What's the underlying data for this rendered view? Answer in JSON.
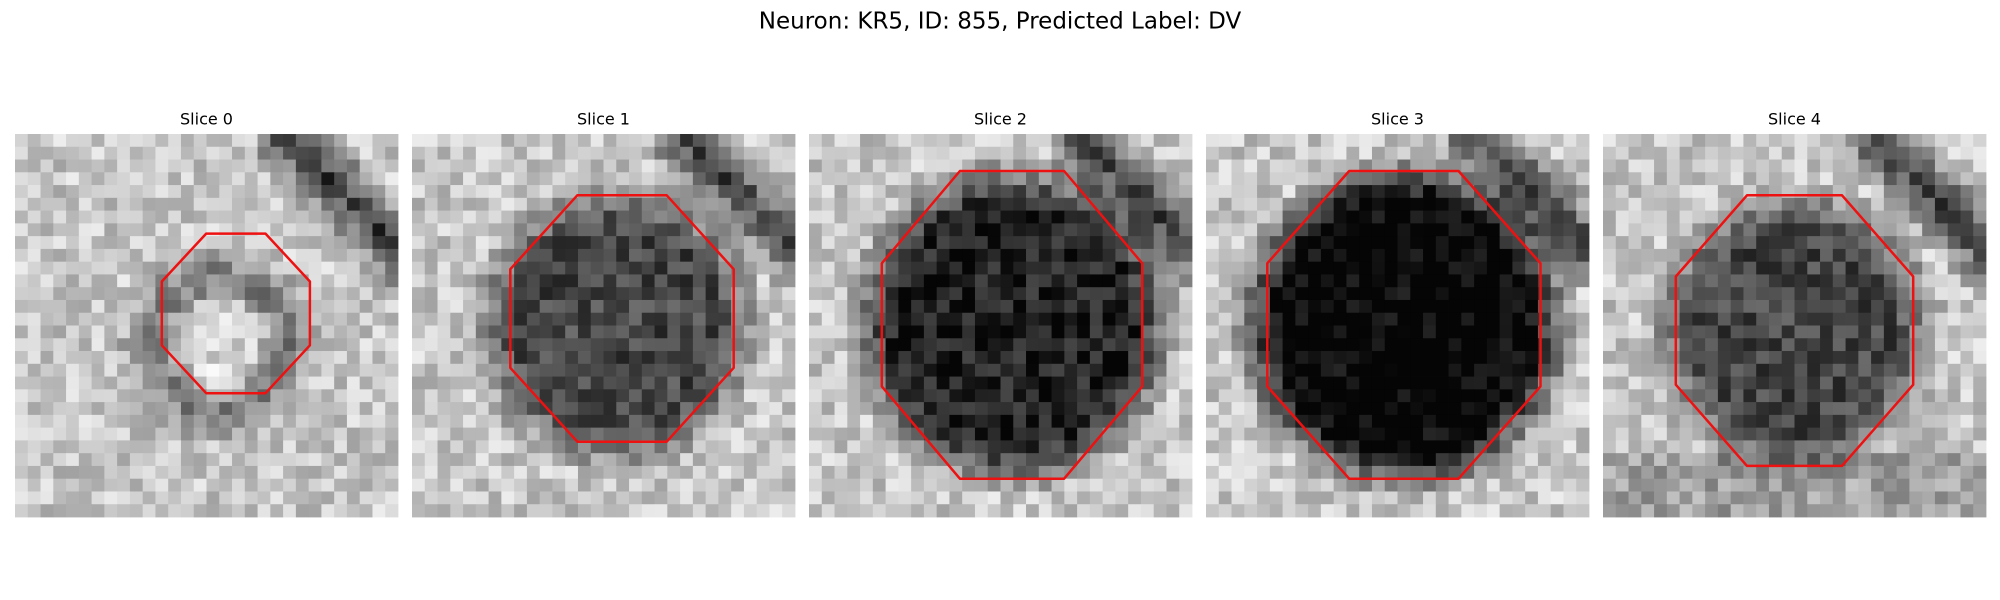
{
  "title": "Neuron: KR5, ID: 855, Predicted Label: DV",
  "panels": [
    {
      "title": "Slice 0"
    },
    {
      "title": "Slice 1"
    },
    {
      "title": "Slice 2"
    },
    {
      "title": "Slice 3"
    },
    {
      "title": "Slice 4"
    }
  ]
}
